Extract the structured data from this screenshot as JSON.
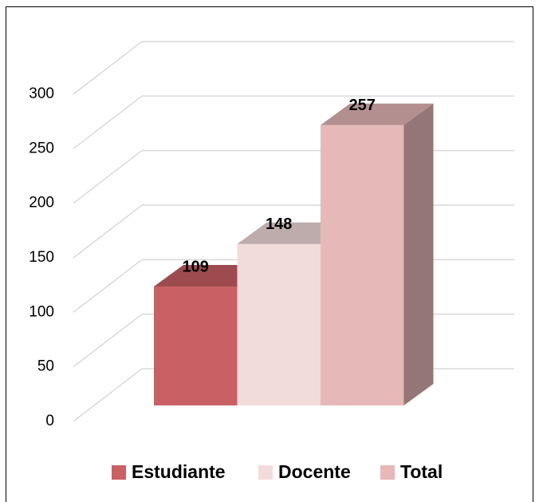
{
  "chart_data": {
    "type": "bar3d",
    "categories": [
      null
    ],
    "series": [
      {
        "name": "Estudiante",
        "color": "#c96064",
        "values": [
          109
        ]
      },
      {
        "name": "Docente",
        "color": "#f2dcdb",
        "values": [
          148
        ]
      },
      {
        "name": "Total",
        "color": "#e6b8b7",
        "values": [
          257
        ]
      }
    ],
    "ylim": [
      0,
      300
    ],
    "yticks": [
      0,
      50,
      100,
      150,
      200,
      250,
      300
    ],
    "grid": true,
    "legend": "bottom"
  }
}
